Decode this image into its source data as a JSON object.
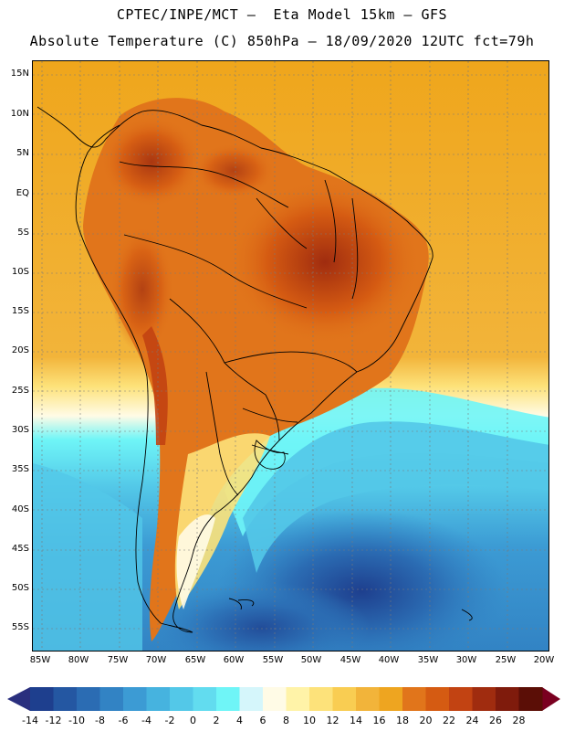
{
  "header": {
    "line1": "CPTEC/INPE/MCT –  Eta Model 15km – GFS",
    "line2": "Absolute Temperature (C) 850hPa – 18/09/2020 12UTC fct=79h"
  },
  "map": {
    "lat_labels": [
      "15N",
      "10N",
      "5N",
      "EQ",
      "5S",
      "10S",
      "15S",
      "20S",
      "25S",
      "30S",
      "35S",
      "40S",
      "45S",
      "50S",
      "55S"
    ],
    "lon_labels": [
      "85W",
      "80W",
      "75W",
      "70W",
      "65W",
      "60W",
      "55W",
      "50W",
      "45W",
      "40W",
      "35W",
      "30W",
      "25W",
      "20W"
    ]
  },
  "colorbar": {
    "labels": [
      "-14",
      "-12",
      "-10",
      "-8",
      "-6",
      "-4",
      "-2",
      "0",
      "2",
      "4",
      "6",
      "8",
      "10",
      "12",
      "14",
      "16",
      "18",
      "20",
      "22",
      "24",
      "26",
      "28"
    ],
    "colors": [
      "#1e3f8e",
      "#2457a2",
      "#2b6cb3",
      "#3283c4",
      "#3c9bd4",
      "#46b3df",
      "#53c8e8",
      "#62dcef",
      "#6ff5f7",
      "#d5f6fb",
      "#fffbe6",
      "#fff3a8",
      "#fde27a",
      "#f9cd52",
      "#f2b43a",
      "#eea520",
      "#e1751b",
      "#d55b12",
      "#c24312",
      "#a02c0f",
      "#7f1b0c",
      "#5b0e06"
    ],
    "low_color": "#2a2f7e",
    "high_color": "#7a0020"
  }
}
